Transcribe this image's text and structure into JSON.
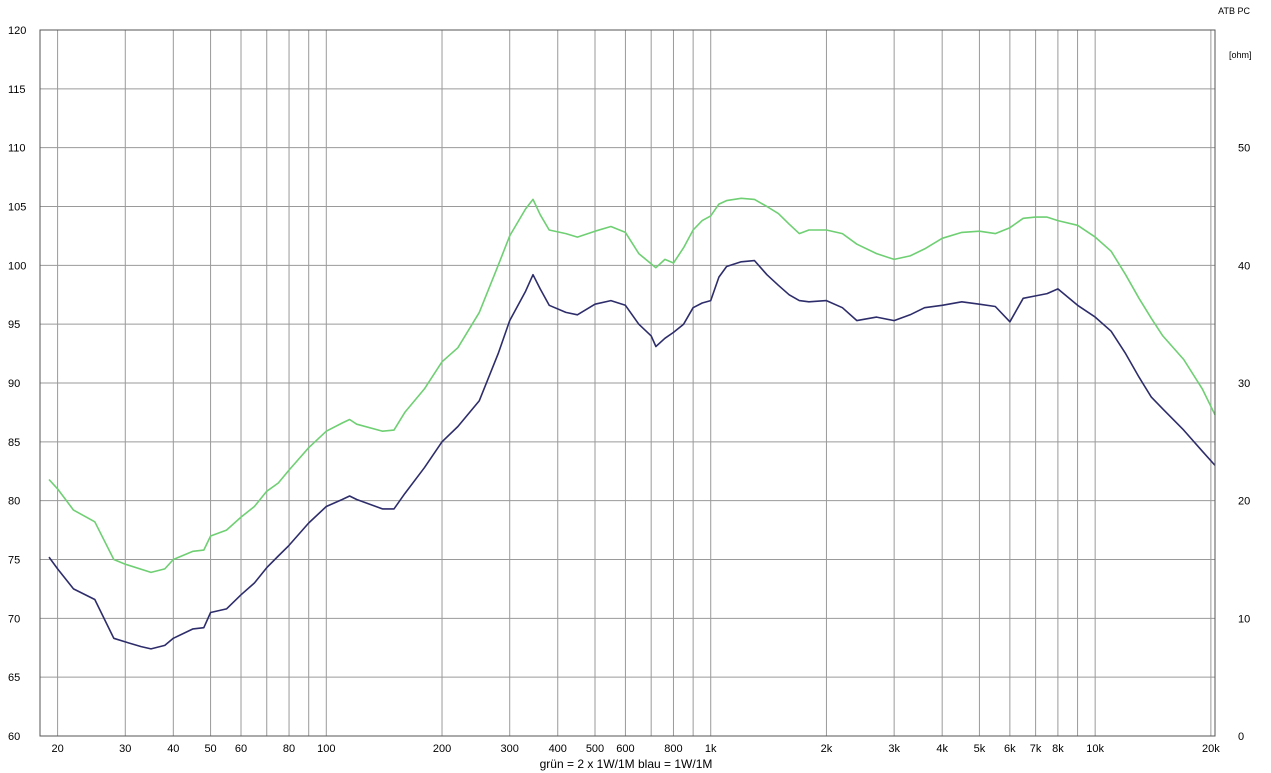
{
  "chart_data": {
    "type": "line",
    "brand": "ATB PC",
    "right_unit_label": "[ohm]",
    "caption": "grün = 2 x 1W/1M    blau = 1W/1M",
    "x_scale": "log",
    "xlim": [
      18,
      20500
    ],
    "ylim": [
      60,
      120
    ],
    "y2lim": [
      0,
      60
    ],
    "grid": true,
    "x_ticks": [
      {
        "value": 20,
        "label": "20"
      },
      {
        "value": 30,
        "label": "30"
      },
      {
        "value": 40,
        "label": "40"
      },
      {
        "value": 50,
        "label": "50"
      },
      {
        "value": 60,
        "label": "60"
      },
      {
        "value": 80,
        "label": "80"
      },
      {
        "value": 100,
        "label": "100"
      },
      {
        "value": 200,
        "label": "200"
      },
      {
        "value": 300,
        "label": "300"
      },
      {
        "value": 400,
        "label": "400"
      },
      {
        "value": 500,
        "label": "500"
      },
      {
        "value": 600,
        "label": "600"
      },
      {
        "value": 800,
        "label": "800"
      },
      {
        "value": 1000,
        "label": "1k"
      },
      {
        "value": 2000,
        "label": "2k"
      },
      {
        "value": 3000,
        "label": "3k"
      },
      {
        "value": 4000,
        "label": "4k"
      },
      {
        "value": 5000,
        "label": "5k"
      },
      {
        "value": 6000,
        "label": "6k"
      },
      {
        "value": 7000,
        "label": "7k"
      },
      {
        "value": 8000,
        "label": "8k"
      },
      {
        "value": 10000,
        "label": "10k"
      },
      {
        "value": 20000,
        "label": "20k"
      }
    ],
    "x_minor_grid": [
      70,
      90,
      700,
      900,
      9000
    ],
    "y_ticks": [
      {
        "value": 60,
        "label": "60"
      },
      {
        "value": 65,
        "label": "65"
      },
      {
        "value": 70,
        "label": "70"
      },
      {
        "value": 75,
        "label": "75"
      },
      {
        "value": 80,
        "label": "80"
      },
      {
        "value": 85,
        "label": "85"
      },
      {
        "value": 90,
        "label": "90"
      },
      {
        "value": 95,
        "label": "95"
      },
      {
        "value": 100,
        "label": "100"
      },
      {
        "value": 105,
        "label": "105"
      },
      {
        "value": 110,
        "label": "110"
      },
      {
        "value": 115,
        "label": "115"
      },
      {
        "value": 120,
        "label": "120"
      }
    ],
    "y2_ticks": [
      {
        "value": 0,
        "label": "0"
      },
      {
        "value": 10,
        "label": "10"
      },
      {
        "value": 20,
        "label": "20"
      },
      {
        "value": 30,
        "label": "30"
      },
      {
        "value": 40,
        "label": "40"
      },
      {
        "value": 50,
        "label": "50"
      }
    ],
    "series": [
      {
        "color": "#6fcf73",
        "points": [
          [
            19,
            81.8
          ],
          [
            20,
            81.0
          ],
          [
            22,
            79.2
          ],
          [
            25,
            78.2
          ],
          [
            28,
            75.0
          ],
          [
            30,
            74.6
          ],
          [
            35,
            73.9
          ],
          [
            38,
            74.2
          ],
          [
            40,
            75.0
          ],
          [
            45,
            75.7
          ],
          [
            48,
            75.8
          ],
          [
            50,
            77.0
          ],
          [
            55,
            77.5
          ],
          [
            60,
            78.6
          ],
          [
            65,
            79.5
          ],
          [
            70,
            80.8
          ],
          [
            75,
            81.5
          ],
          [
            80,
            82.6
          ],
          [
            90,
            84.5
          ],
          [
            100,
            85.9
          ],
          [
            110,
            86.6
          ],
          [
            115,
            86.9
          ],
          [
            120,
            86.5
          ],
          [
            140,
            85.9
          ],
          [
            150,
            86.0
          ],
          [
            160,
            87.5
          ],
          [
            180,
            89.5
          ],
          [
            200,
            91.8
          ],
          [
            220,
            93.0
          ],
          [
            250,
            96.0
          ],
          [
            280,
            100.0
          ],
          [
            300,
            102.5
          ],
          [
            330,
            104.8
          ],
          [
            345,
            105.6
          ],
          [
            360,
            104.3
          ],
          [
            380,
            103.0
          ],
          [
            420,
            102.7
          ],
          [
            450,
            102.4
          ],
          [
            500,
            102.9
          ],
          [
            550,
            103.3
          ],
          [
            600,
            102.8
          ],
          [
            650,
            101.0
          ],
          [
            720,
            99.8
          ],
          [
            760,
            100.5
          ],
          [
            800,
            100.2
          ],
          [
            850,
            101.5
          ],
          [
            900,
            103.0
          ],
          [
            950,
            103.8
          ],
          [
            1000,
            104.2
          ],
          [
            1050,
            105.2
          ],
          [
            1100,
            105.5
          ],
          [
            1200,
            105.7
          ],
          [
            1300,
            105.6
          ],
          [
            1400,
            105.0
          ],
          [
            1500,
            104.4
          ],
          [
            1600,
            103.5
          ],
          [
            1700,
            102.7
          ],
          [
            1800,
            103.0
          ],
          [
            2000,
            103.0
          ],
          [
            2200,
            102.7
          ],
          [
            2400,
            101.8
          ],
          [
            2700,
            101.0
          ],
          [
            3000,
            100.5
          ],
          [
            3300,
            100.8
          ],
          [
            3600,
            101.4
          ],
          [
            4000,
            102.3
          ],
          [
            4500,
            102.8
          ],
          [
            5000,
            102.9
          ],
          [
            5500,
            102.7
          ],
          [
            6000,
            103.2
          ],
          [
            6500,
            104.0
          ],
          [
            7000,
            104.1
          ],
          [
            7500,
            104.1
          ],
          [
            8000,
            103.8
          ],
          [
            9000,
            103.4
          ],
          [
            10000,
            102.4
          ],
          [
            11000,
            101.2
          ],
          [
            12000,
            99.2
          ],
          [
            13000,
            97.2
          ],
          [
            14000,
            95.5
          ],
          [
            15000,
            94.0
          ],
          [
            17000,
            92.0
          ],
          [
            19000,
            89.5
          ],
          [
            20500,
            87.3
          ]
        ]
      },
      {
        "color": "#2e2d6b",
        "points": [
          [
            19,
            75.2
          ],
          [
            20,
            74.2
          ],
          [
            22,
            72.5
          ],
          [
            25,
            71.6
          ],
          [
            28,
            68.3
          ],
          [
            30,
            68.0
          ],
          [
            33,
            67.6
          ],
          [
            35,
            67.4
          ],
          [
            38,
            67.7
          ],
          [
            40,
            68.3
          ],
          [
            45,
            69.1
          ],
          [
            48,
            69.2
          ],
          [
            50,
            70.5
          ],
          [
            55,
            70.8
          ],
          [
            60,
            72.0
          ],
          [
            65,
            73.0
          ],
          [
            70,
            74.3
          ],
          [
            75,
            75.3
          ],
          [
            80,
            76.2
          ],
          [
            90,
            78.1
          ],
          [
            100,
            79.5
          ],
          [
            110,
            80.1
          ],
          [
            115,
            80.4
          ],
          [
            120,
            80.1
          ],
          [
            140,
            79.3
          ],
          [
            150,
            79.3
          ],
          [
            160,
            80.6
          ],
          [
            180,
            82.8
          ],
          [
            200,
            85.0
          ],
          [
            220,
            86.3
          ],
          [
            250,
            88.5
          ],
          [
            280,
            92.5
          ],
          [
            300,
            95.3
          ],
          [
            330,
            97.8
          ],
          [
            345,
            99.2
          ],
          [
            360,
            98.0
          ],
          [
            380,
            96.6
          ],
          [
            420,
            96.0
          ],
          [
            450,
            95.8
          ],
          [
            500,
            96.7
          ],
          [
            550,
            97.0
          ],
          [
            600,
            96.6
          ],
          [
            650,
            95.0
          ],
          [
            700,
            94.0
          ],
          [
            720,
            93.1
          ],
          [
            760,
            93.8
          ],
          [
            800,
            94.3
          ],
          [
            850,
            95.0
          ],
          [
            900,
            96.4
          ],
          [
            950,
            96.8
          ],
          [
            1000,
            97.0
          ],
          [
            1050,
            99.0
          ],
          [
            1100,
            99.9
          ],
          [
            1200,
            100.3
          ],
          [
            1300,
            100.4
          ],
          [
            1400,
            99.2
          ],
          [
            1500,
            98.3
          ],
          [
            1600,
            97.5
          ],
          [
            1700,
            97.0
          ],
          [
            1800,
            96.9
          ],
          [
            2000,
            97.0
          ],
          [
            2200,
            96.4
          ],
          [
            2400,
            95.3
          ],
          [
            2700,
            95.6
          ],
          [
            3000,
            95.3
          ],
          [
            3300,
            95.8
          ],
          [
            3600,
            96.4
          ],
          [
            4000,
            96.6
          ],
          [
            4500,
            96.9
          ],
          [
            5000,
            96.7
          ],
          [
            5500,
            96.5
          ],
          [
            6000,
            95.2
          ],
          [
            6500,
            97.2
          ],
          [
            7000,
            97.4
          ],
          [
            7500,
            97.6
          ],
          [
            8000,
            98.0
          ],
          [
            9000,
            96.6
          ],
          [
            10000,
            95.6
          ],
          [
            11000,
            94.4
          ],
          [
            12000,
            92.5
          ],
          [
            13000,
            90.5
          ],
          [
            14000,
            88.8
          ],
          [
            15000,
            87.8
          ],
          [
            17000,
            86.0
          ],
          [
            19000,
            84.2
          ],
          [
            20500,
            83.0
          ]
        ]
      }
    ]
  }
}
